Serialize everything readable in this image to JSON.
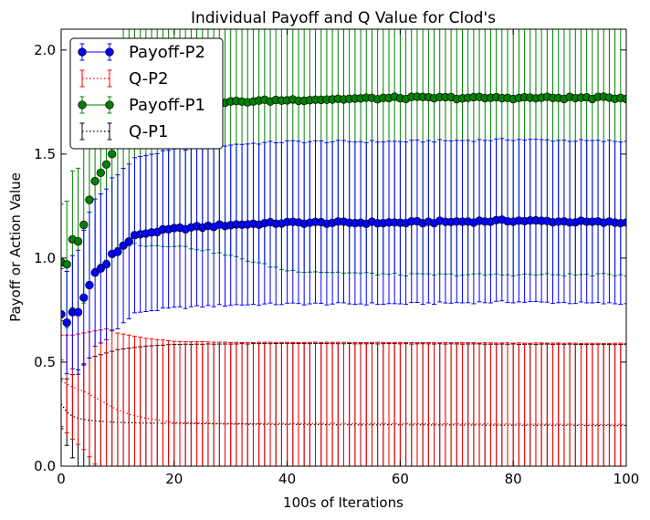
{
  "chart_data": {
    "type": "scatter",
    "title": "Individual Payoff and Q Value for Clod's",
    "xlabel": "100s of Iterations",
    "ylabel": "Payoff or Action Value",
    "xlim": [
      0,
      100
    ],
    "ylim": [
      0,
      2.1
    ],
    "x_ticks": [
      "0",
      "20",
      "40",
      "60",
      "80",
      "100"
    ],
    "y_ticks": [
      "0.0",
      "0.5",
      "1.0",
      "1.5",
      "2.0"
    ],
    "grid": false,
    "legend_position": "top-left",
    "legend": [
      "Payoff-P2",
      "Q-P2",
      "Payoff-P1",
      "Q-P1"
    ],
    "series": [
      {
        "name": "Payoff-P2",
        "color": "#0000ff",
        "style": "markers",
        "description_points": [
          [
            0,
            0.73
          ],
          [
            1,
            0.69
          ],
          [
            2,
            0.74
          ],
          [
            3,
            0.74
          ],
          [
            4,
            0.81
          ],
          [
            5,
            0.87
          ],
          [
            6,
            0.93
          ],
          [
            7,
            0.95
          ],
          [
            8,
            0.97
          ],
          [
            9,
            1.02
          ],
          [
            10,
            1.03
          ],
          [
            11,
            1.06
          ],
          [
            12,
            1.08
          ],
          [
            13,
            1.11
          ],
          [
            14,
            1.11
          ],
          [
            15,
            1.12
          ],
          [
            20,
            1.14
          ],
          [
            25,
            1.15
          ],
          [
            30,
            1.16
          ],
          [
            40,
            1.17
          ],
          [
            60,
            1.17
          ],
          [
            80,
            1.18
          ],
          [
            100,
            1.17
          ]
        ],
        "error_points": [
          [
            0,
            0.22
          ],
          [
            5,
            0.35
          ],
          [
            10,
            0.37
          ],
          [
            20,
            0.38
          ],
          [
            40,
            0.39
          ],
          [
            100,
            0.39
          ]
        ]
      },
      {
        "name": "Q-P2",
        "color": "#ff0000",
        "style": "dotted",
        "description_points": [
          [
            0,
            0.41
          ],
          [
            2,
            0.38
          ],
          [
            4,
            0.36
          ],
          [
            6,
            0.33
          ],
          [
            8,
            0.3
          ],
          [
            10,
            0.27
          ],
          [
            12,
            0.25
          ],
          [
            15,
            0.23
          ],
          [
            20,
            0.21
          ],
          [
            30,
            0.205
          ],
          [
            50,
            0.205
          ],
          [
            100,
            0.2
          ]
        ],
        "error_points": [
          [
            0,
            0.22
          ],
          [
            4,
            0.28
          ],
          [
            8,
            0.36
          ],
          [
            12,
            0.38
          ],
          [
            20,
            0.39
          ],
          [
            40,
            0.39
          ],
          [
            100,
            0.39
          ]
        ]
      },
      {
        "name": "Payoff-P1",
        "color": "#008000",
        "style": "markers",
        "description_points": [
          [
            0,
            0.98
          ],
          [
            1,
            0.97
          ],
          [
            2,
            1.09
          ],
          [
            3,
            1.08
          ],
          [
            4,
            1.16
          ],
          [
            5,
            1.28
          ],
          [
            6,
            1.37
          ],
          [
            7,
            1.41
          ],
          [
            8,
            1.45
          ],
          [
            9,
            1.5
          ],
          [
            10,
            1.55
          ],
          [
            11,
            1.58
          ],
          [
            12,
            1.6
          ],
          [
            13,
            1.63
          ],
          [
            15,
            1.66
          ],
          [
            20,
            1.71
          ],
          [
            25,
            1.74
          ],
          [
            30,
            1.75
          ],
          [
            40,
            1.76
          ],
          [
            60,
            1.77
          ],
          [
            80,
            1.77
          ],
          [
            100,
            1.77
          ]
        ],
        "error_points": [
          [
            0,
            0.28
          ],
          [
            5,
            0.4
          ],
          [
            10,
            0.5
          ],
          [
            15,
            0.6
          ],
          [
            20,
            0.65
          ],
          [
            25,
            0.7
          ],
          [
            40,
            0.82
          ],
          [
            60,
            0.85
          ],
          [
            100,
            0.85
          ]
        ]
      },
      {
        "name": "Q-P1",
        "color": "#000000",
        "style": "dotted",
        "description_points": [
          [
            0,
            0.3
          ],
          [
            1,
            0.26
          ],
          [
            2,
            0.24
          ],
          [
            3,
            0.23
          ],
          [
            5,
            0.22
          ],
          [
            10,
            0.21
          ],
          [
            20,
            0.205
          ],
          [
            40,
            0.2
          ],
          [
            100,
            0.195
          ]
        ],
        "error_points": [
          [
            0,
            0.12
          ],
          [
            2,
            0.2
          ],
          [
            5,
            0.3
          ],
          [
            10,
            0.35
          ],
          [
            15,
            0.37
          ],
          [
            20,
            0.38
          ],
          [
            40,
            0.39
          ],
          [
            100,
            0.39
          ]
        ]
      }
    ]
  }
}
